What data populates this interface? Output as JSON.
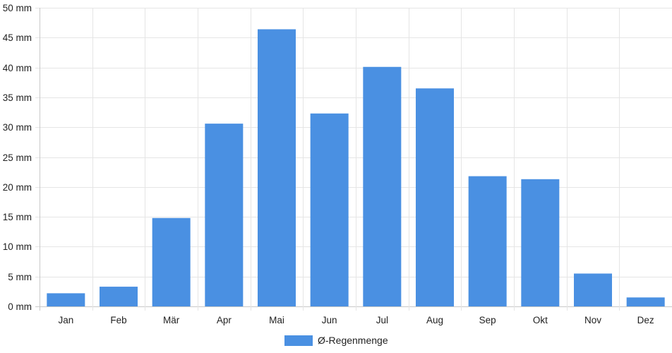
{
  "chart_data": {
    "type": "bar",
    "categories": [
      "Jan",
      "Feb",
      "Mär",
      "Apr",
      "Mai",
      "Jun",
      "Jul",
      "Aug",
      "Sep",
      "Okt",
      "Nov",
      "Dez"
    ],
    "series": [
      {
        "name": "Ø-Regenmenge",
        "values": [
          2.2,
          3.3,
          14.8,
          30.6,
          46.4,
          32.3,
          40.1,
          36.5,
          21.8,
          21.3,
          5.5,
          1.5
        ],
        "color": "#4a90e2"
      }
    ],
    "y_ticks": [
      "0 mm",
      "5 mm",
      "10 mm",
      "15 mm",
      "20 mm",
      "25 mm",
      "30 mm",
      "35 mm",
      "40 mm",
      "45 mm",
      "50 mm"
    ],
    "ylim": [
      0,
      50
    ],
    "grid": true,
    "legend_position": "bottom",
    "grid_color": "#e5e5e5"
  }
}
